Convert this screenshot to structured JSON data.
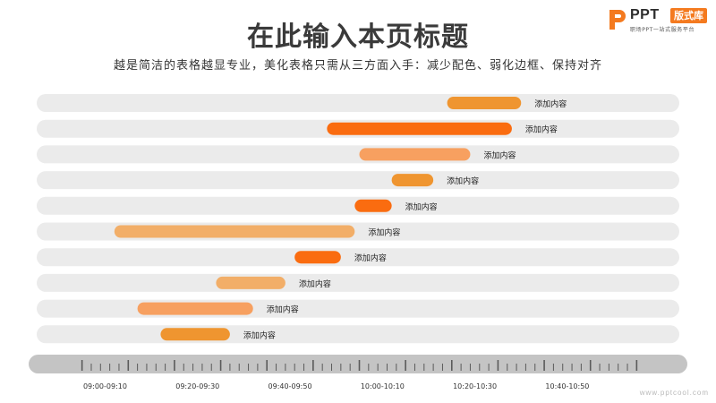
{
  "header": {
    "title": "在此输入本页标题",
    "subtitle": "越是简洁的表格越显专业，美化表格只需从三方面入手：减少配色、弱化边框、保持对齐"
  },
  "logo": {
    "brand": "PPT",
    "badge": "版式库",
    "tagline": "职场PPT一站式服务平台"
  },
  "watermark": "www.pptcool.com",
  "colors": {
    "track": "#ebebeb",
    "axis": "#c4c4c4",
    "tick": "#5a5a5a",
    "brand": "#f47a1f"
  },
  "chart_data": {
    "type": "bar",
    "orientation": "horizontal-gantt",
    "x_unit": "time",
    "xlim": [
      "08:50",
      "11:10"
    ],
    "tick_labels": [
      "09:00-09:10",
      "09:20-09:30",
      "09:40-09:50",
      "10:00-10:10",
      "10:20-10:30",
      "10:40-10:50"
    ],
    "series": [
      {
        "label": "添加内容",
        "start": "10:19",
        "end": "10:35",
        "color": "#ef9530"
      },
      {
        "label": "添加内容",
        "start": "09:53",
        "end": "10:33",
        "color": "#fa6c10"
      },
      {
        "label": "添加内容",
        "start": "10:00",
        "end": "10:24",
        "color": "#f7a060"
      },
      {
        "label": "添加内容",
        "start": "10:07",
        "end": "10:16",
        "color": "#ef9530"
      },
      {
        "label": "添加内容",
        "start": "09:59",
        "end": "10:07",
        "color": "#fa6c10"
      },
      {
        "label": "添加内容",
        "start": "09:07",
        "end": "09:59",
        "color": "#f2ae68"
      },
      {
        "label": "添加内容",
        "start": "09:46",
        "end": "09:56",
        "color": "#fa6c10"
      },
      {
        "label": "添加内容",
        "start": "09:29",
        "end": "09:44",
        "color": "#f2ae68"
      },
      {
        "label": "添加内容",
        "start": "09:12",
        "end": "09:37",
        "color": "#f7a060"
      },
      {
        "label": "添加内容",
        "start": "09:17",
        "end": "09:32",
        "color": "#ef9530"
      }
    ]
  }
}
